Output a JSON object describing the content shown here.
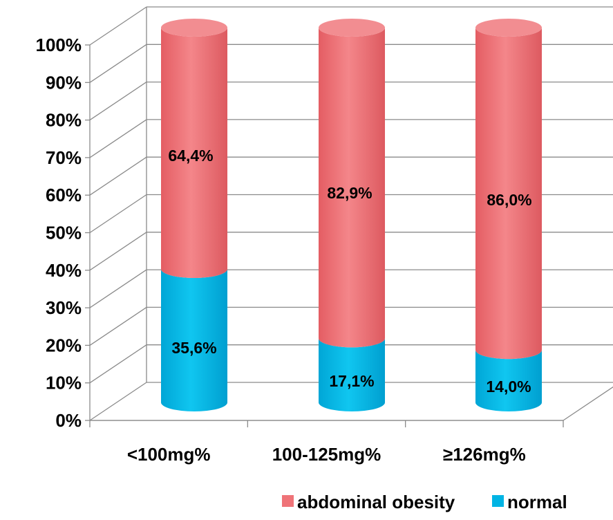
{
  "chart_data": {
    "type": "bar",
    "stacked": true,
    "percent": true,
    "three_d": true,
    "shape": "cylinder",
    "categories": [
      "<100mg%",
      "100-125mg%",
      "≥126mg%"
    ],
    "series": [
      {
        "name": "normal",
        "values": [
          35.6,
          17.1,
          14.0
        ],
        "labels": [
          "35,6%",
          "17,1%",
          "14,0%"
        ],
        "color": "#00b4e4"
      },
      {
        "name": "abdominal obesity",
        "values": [
          64.4,
          82.9,
          86.0
        ],
        "labels": [
          "64,4%",
          "82,9%",
          "86,0%"
        ],
        "color": "#ef7378"
      }
    ],
    "ylim": [
      0,
      100
    ],
    "yticks": [
      "0%",
      "10%",
      "20%",
      "30%",
      "40%",
      "50%",
      "60%",
      "70%",
      "80%",
      "90%",
      "100%"
    ],
    "grid": true,
    "legend": "bottom-right",
    "title": "",
    "xlabel": "",
    "ylabel": ""
  }
}
